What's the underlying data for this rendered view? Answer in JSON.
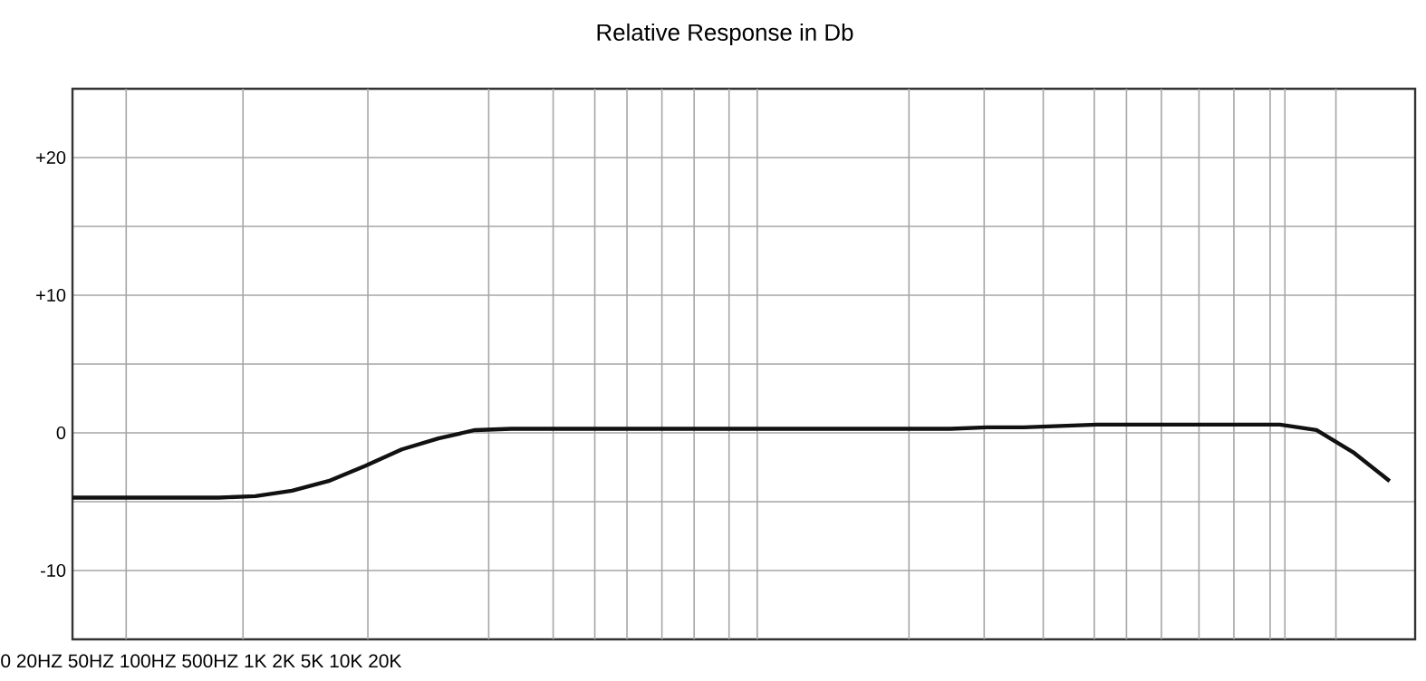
{
  "chart_data": {
    "type": "line",
    "title": "Relative Response in Db",
    "xlabel": "0 20HZ 50HZ 100HZ 500HZ 1K 2K 5K 10K 20K",
    "categories": [
      null,
      null,
      null,
      null,
      null,
      null,
      null,
      null,
      null,
      null,
      null,
      null,
      null,
      null,
      null,
      null,
      null,
      null,
      null,
      null,
      null,
      null,
      null,
      null,
      null,
      null,
      null,
      null,
      null,
      null,
      null,
      null,
      null,
      null,
      null,
      null,
      null
    ],
    "ylim": [
      -15,
      25
    ],
    "yticks": [
      {
        "value": -15,
        "label": null
      },
      {
        "value": -10,
        "label": "-10"
      },
      {
        "value": -5,
        "label": null
      },
      {
        "value": 0,
        "label": "0"
      },
      {
        "value": 5,
        "label": null
      },
      {
        "value": 10,
        "label": "+10"
      },
      {
        "value": 15,
        "label": null
      },
      {
        "value": 20,
        "label": "+20"
      },
      {
        "value": 25,
        "label": null
      }
    ],
    "grid": true,
    "tick_labels": "y",
    "marker": "none",
    "line_style": "solid",
    "series": [
      {
        "color": "#111111",
        "values": [
          -4.7,
          -4.7,
          -4.7,
          -4.7,
          -4.7,
          -4.6,
          -4.2,
          -3.5,
          -2.4,
          -1.2,
          -0.4,
          0.2,
          0.3,
          0.3,
          0.3,
          0.3,
          0.3,
          0.3,
          0.3,
          0.3,
          0.3,
          0.3,
          0.3,
          0.3,
          0.3,
          0.4,
          0.4,
          0.5,
          0.6,
          0.6,
          0.6,
          0.6,
          0.6,
          0.6,
          0.2,
          -1.4,
          -3.5
        ]
      }
    ]
  }
}
